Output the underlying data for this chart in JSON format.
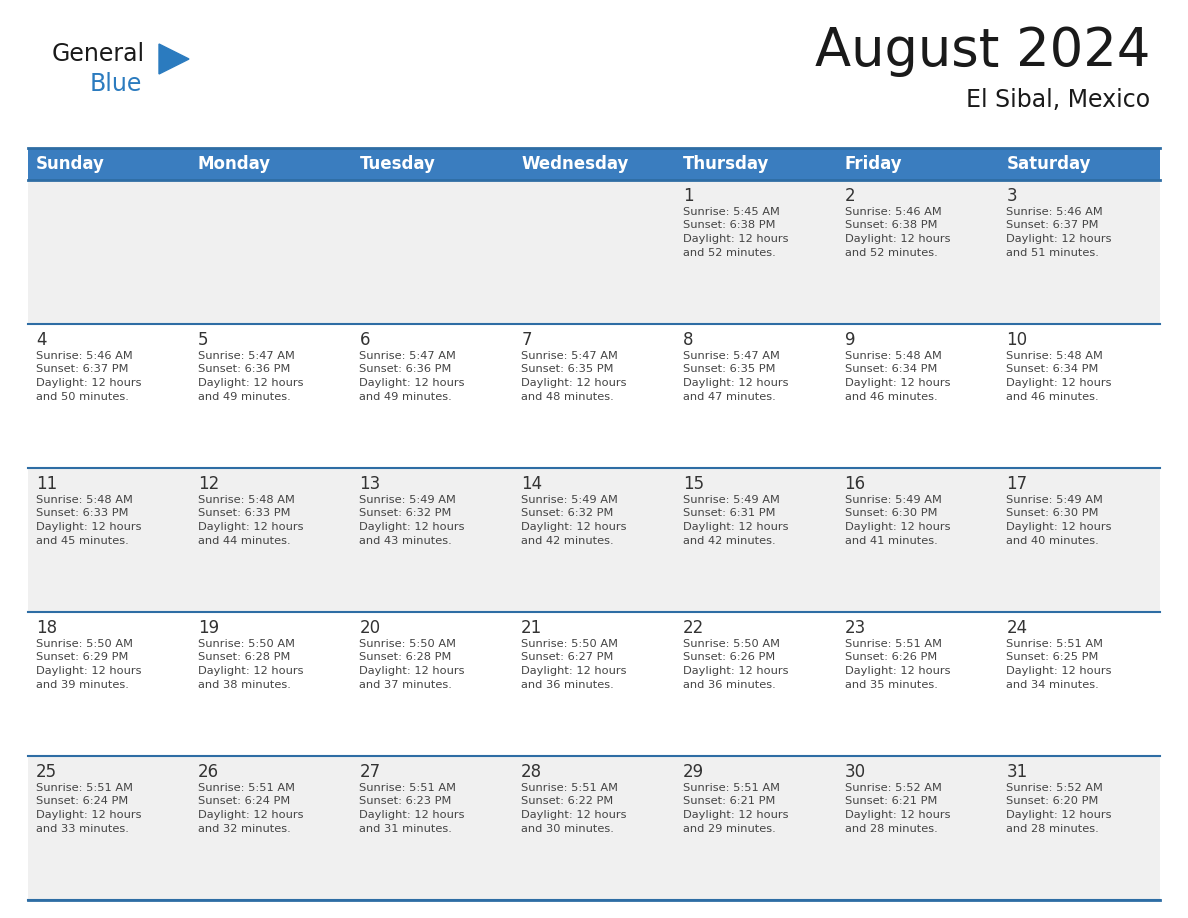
{
  "title": "August 2024",
  "subtitle": "El Sibal, Mexico",
  "header_bg_color": "#3a7dbf",
  "header_text_color": "#ffffff",
  "cell_bg_color_odd": "#f0f0f0",
  "cell_bg_color_even": "#ffffff",
  "border_color": "#2e6da4",
  "day_names": [
    "Sunday",
    "Monday",
    "Tuesday",
    "Wednesday",
    "Thursday",
    "Friday",
    "Saturday"
  ],
  "days": [
    {
      "day": 1,
      "col": 4,
      "row": 0,
      "sunrise": "5:45 AM",
      "sunset": "6:38 PM",
      "daylight_hours": 12,
      "daylight_minutes": 52
    },
    {
      "day": 2,
      "col": 5,
      "row": 0,
      "sunrise": "5:46 AM",
      "sunset": "6:38 PM",
      "daylight_hours": 12,
      "daylight_minutes": 52
    },
    {
      "day": 3,
      "col": 6,
      "row": 0,
      "sunrise": "5:46 AM",
      "sunset": "6:37 PM",
      "daylight_hours": 12,
      "daylight_minutes": 51
    },
    {
      "day": 4,
      "col": 0,
      "row": 1,
      "sunrise": "5:46 AM",
      "sunset": "6:37 PM",
      "daylight_hours": 12,
      "daylight_minutes": 50
    },
    {
      "day": 5,
      "col": 1,
      "row": 1,
      "sunrise": "5:47 AM",
      "sunset": "6:36 PM",
      "daylight_hours": 12,
      "daylight_minutes": 49
    },
    {
      "day": 6,
      "col": 2,
      "row": 1,
      "sunrise": "5:47 AM",
      "sunset": "6:36 PM",
      "daylight_hours": 12,
      "daylight_minutes": 49
    },
    {
      "day": 7,
      "col": 3,
      "row": 1,
      "sunrise": "5:47 AM",
      "sunset": "6:35 PM",
      "daylight_hours": 12,
      "daylight_minutes": 48
    },
    {
      "day": 8,
      "col": 4,
      "row": 1,
      "sunrise": "5:47 AM",
      "sunset": "6:35 PM",
      "daylight_hours": 12,
      "daylight_minutes": 47
    },
    {
      "day": 9,
      "col": 5,
      "row": 1,
      "sunrise": "5:48 AM",
      "sunset": "6:34 PM",
      "daylight_hours": 12,
      "daylight_minutes": 46
    },
    {
      "day": 10,
      "col": 6,
      "row": 1,
      "sunrise": "5:48 AM",
      "sunset": "6:34 PM",
      "daylight_hours": 12,
      "daylight_minutes": 46
    },
    {
      "day": 11,
      "col": 0,
      "row": 2,
      "sunrise": "5:48 AM",
      "sunset": "6:33 PM",
      "daylight_hours": 12,
      "daylight_minutes": 45
    },
    {
      "day": 12,
      "col": 1,
      "row": 2,
      "sunrise": "5:48 AM",
      "sunset": "6:33 PM",
      "daylight_hours": 12,
      "daylight_minutes": 44
    },
    {
      "day": 13,
      "col": 2,
      "row": 2,
      "sunrise": "5:49 AM",
      "sunset": "6:32 PM",
      "daylight_hours": 12,
      "daylight_minutes": 43
    },
    {
      "day": 14,
      "col": 3,
      "row": 2,
      "sunrise": "5:49 AM",
      "sunset": "6:32 PM",
      "daylight_hours": 12,
      "daylight_minutes": 42
    },
    {
      "day": 15,
      "col": 4,
      "row": 2,
      "sunrise": "5:49 AM",
      "sunset": "6:31 PM",
      "daylight_hours": 12,
      "daylight_minutes": 42
    },
    {
      "day": 16,
      "col": 5,
      "row": 2,
      "sunrise": "5:49 AM",
      "sunset": "6:30 PM",
      "daylight_hours": 12,
      "daylight_minutes": 41
    },
    {
      "day": 17,
      "col": 6,
      "row": 2,
      "sunrise": "5:49 AM",
      "sunset": "6:30 PM",
      "daylight_hours": 12,
      "daylight_minutes": 40
    },
    {
      "day": 18,
      "col": 0,
      "row": 3,
      "sunrise": "5:50 AM",
      "sunset": "6:29 PM",
      "daylight_hours": 12,
      "daylight_minutes": 39
    },
    {
      "day": 19,
      "col": 1,
      "row": 3,
      "sunrise": "5:50 AM",
      "sunset": "6:28 PM",
      "daylight_hours": 12,
      "daylight_minutes": 38
    },
    {
      "day": 20,
      "col": 2,
      "row": 3,
      "sunrise": "5:50 AM",
      "sunset": "6:28 PM",
      "daylight_hours": 12,
      "daylight_minutes": 37
    },
    {
      "day": 21,
      "col": 3,
      "row": 3,
      "sunrise": "5:50 AM",
      "sunset": "6:27 PM",
      "daylight_hours": 12,
      "daylight_minutes": 36
    },
    {
      "day": 22,
      "col": 4,
      "row": 3,
      "sunrise": "5:50 AM",
      "sunset": "6:26 PM",
      "daylight_hours": 12,
      "daylight_minutes": 36
    },
    {
      "day": 23,
      "col": 5,
      "row": 3,
      "sunrise": "5:51 AM",
      "sunset": "6:26 PM",
      "daylight_hours": 12,
      "daylight_minutes": 35
    },
    {
      "day": 24,
      "col": 6,
      "row": 3,
      "sunrise": "5:51 AM",
      "sunset": "6:25 PM",
      "daylight_hours": 12,
      "daylight_minutes": 34
    },
    {
      "day": 25,
      "col": 0,
      "row": 4,
      "sunrise": "5:51 AM",
      "sunset": "6:24 PM",
      "daylight_hours": 12,
      "daylight_minutes": 33
    },
    {
      "day": 26,
      "col": 1,
      "row": 4,
      "sunrise": "5:51 AM",
      "sunset": "6:24 PM",
      "daylight_hours": 12,
      "daylight_minutes": 32
    },
    {
      "day": 27,
      "col": 2,
      "row": 4,
      "sunrise": "5:51 AM",
      "sunset": "6:23 PM",
      "daylight_hours": 12,
      "daylight_minutes": 31
    },
    {
      "day": 28,
      "col": 3,
      "row": 4,
      "sunrise": "5:51 AM",
      "sunset": "6:22 PM",
      "daylight_hours": 12,
      "daylight_minutes": 30
    },
    {
      "day": 29,
      "col": 4,
      "row": 4,
      "sunrise": "5:51 AM",
      "sunset": "6:21 PM",
      "daylight_hours": 12,
      "daylight_minutes": 29
    },
    {
      "day": 30,
      "col": 5,
      "row": 4,
      "sunrise": "5:52 AM",
      "sunset": "6:21 PM",
      "daylight_hours": 12,
      "daylight_minutes": 28
    },
    {
      "day": 31,
      "col": 6,
      "row": 4,
      "sunrise": "5:52 AM",
      "sunset": "6:20 PM",
      "daylight_hours": 12,
      "daylight_minutes": 28
    }
  ],
  "logo_text1": "General",
  "logo_text2": "Blue",
  "logo_color1": "#1a1a1a",
  "logo_color2": "#2b7bbf",
  "logo_triangle_color": "#2b7bbf",
  "title_fontsize": 38,
  "subtitle_fontsize": 17,
  "header_fontsize": 12,
  "day_number_fontsize": 12,
  "cell_text_fontsize": 8.2,
  "num_rows": 5,
  "num_cols": 7
}
